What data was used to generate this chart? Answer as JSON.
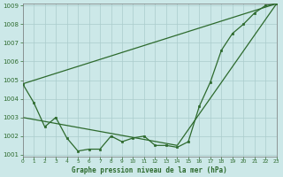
{
  "title": "Graphe pression niveau de la mer (hPa)",
  "bg_color": "#cce8e8",
  "grid_color": "#aacccc",
  "line_color": "#2d6a2d",
  "x_values": [
    0,
    1,
    2,
    3,
    4,
    5,
    6,
    7,
    8,
    9,
    10,
    11,
    12,
    13,
    14,
    15,
    16,
    17,
    18,
    19,
    20,
    21,
    22,
    23
  ],
  "line1": [
    1004.8,
    1003.8,
    1002.5,
    1003.0,
    1001.9,
    1001.2,
    1001.3,
    1001.3,
    1002.0,
    1001.7,
    1001.9,
    1002.0,
    1001.5,
    1001.5,
    1001.4,
    1001.7,
    1003.6,
    1004.9,
    1006.6,
    1007.5,
    1008.0,
    1008.6,
    1009.0,
    1009.1
  ],
  "line2_x": [
    0,
    23
  ],
  "line2_y": [
    1004.8,
    1009.1
  ],
  "line3_x": [
    0,
    14,
    23
  ],
  "line3_y": [
    1003.0,
    1001.5,
    1009.1
  ],
  "ylim_min": 1001.0,
  "ylim_max": 1009.0,
  "yticks": [
    1001,
    1002,
    1003,
    1004,
    1005,
    1006,
    1007,
    1008,
    1009
  ],
  "xlim_min": 0,
  "xlim_max": 23
}
